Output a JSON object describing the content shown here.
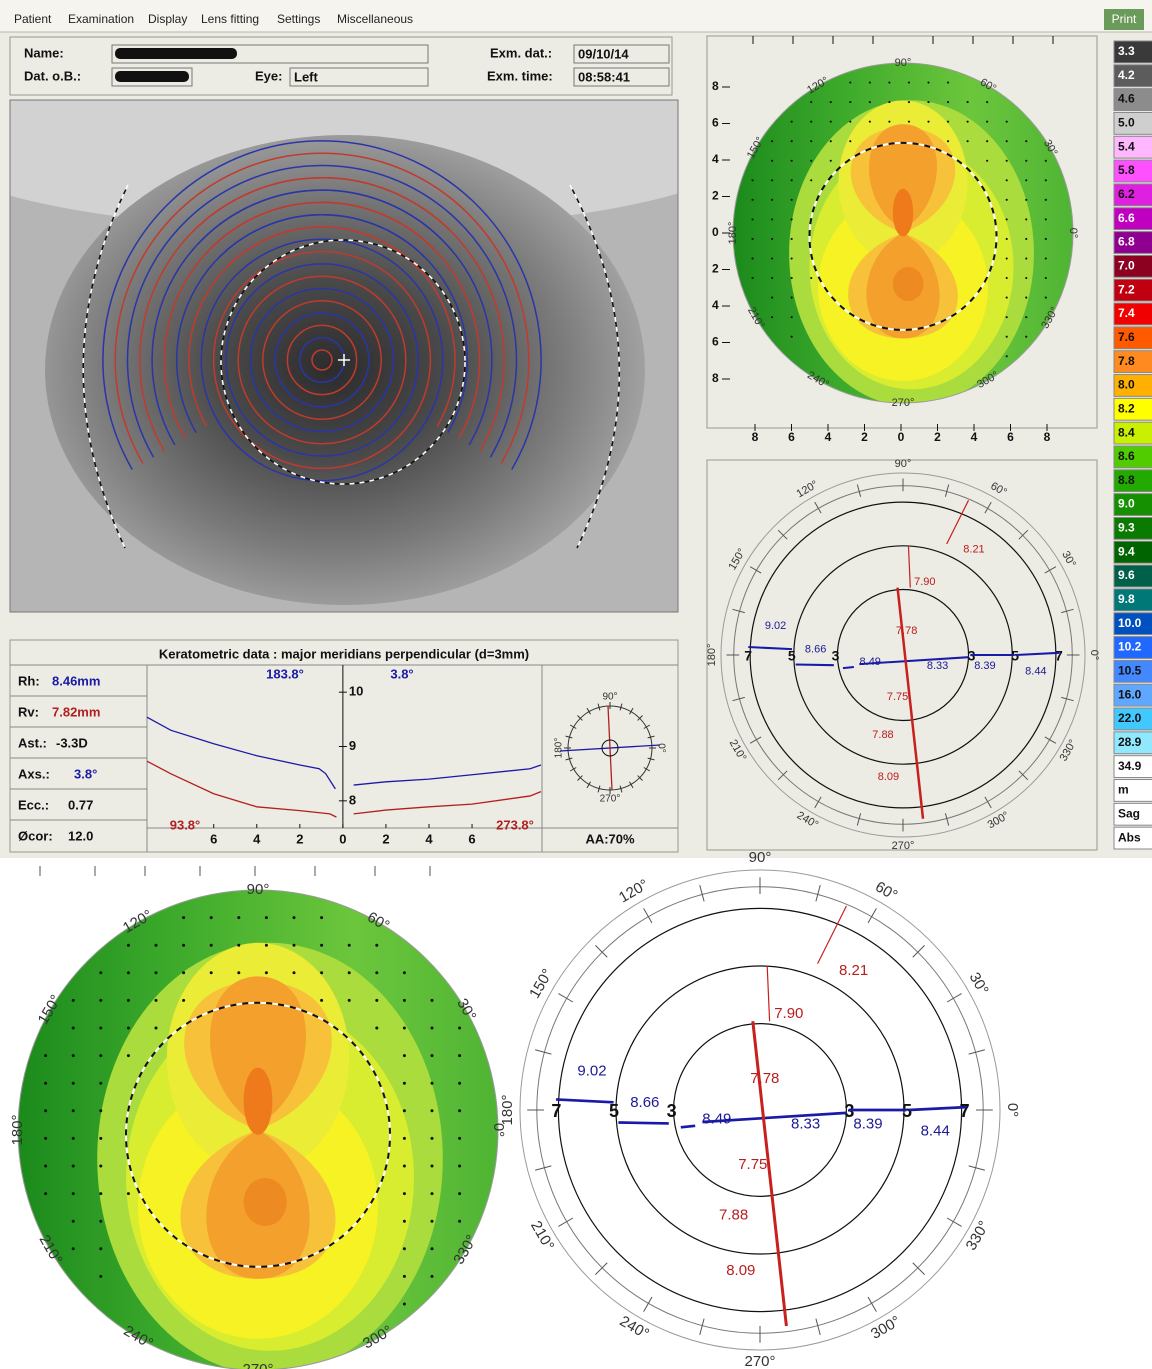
{
  "menu": [
    "Patient",
    "Examination",
    "Display",
    "Lens fitting",
    "Settings",
    "Miscellaneous"
  ],
  "print_button": "Print",
  "header": {
    "name_label": "Name:",
    "dob_label": "Dat. o.B.:",
    "eye_label": "Eye:",
    "eye": "Left",
    "exam_date_label": "Exm. dat.:",
    "exam_date": "09/10/14",
    "exam_time_label": "Exm. time:",
    "exam_time": "08:58:41"
  },
  "angle_labels": [
    "90°",
    "60°",
    "30°",
    "0°",
    "330°",
    "300°",
    "270°",
    "240°",
    "210°",
    "180°",
    "150°",
    "120°"
  ],
  "topography": {
    "axis_labels": [
      8,
      6,
      4,
      2,
      0,
      2,
      4,
      6,
      8
    ]
  },
  "scale": [
    {
      "label": "3.3",
      "color": "#3a3a3a"
    },
    {
      "label": "4.2",
      "color": "#5c5c5c"
    },
    {
      "label": "4.6",
      "color": "#8c8c8c"
    },
    {
      "label": "5.0",
      "color": "#cfcfcf"
    },
    {
      "label": "5.4",
      "color": "#ffb8ff"
    },
    {
      "label": "5.8",
      "color": "#ff50ff"
    },
    {
      "label": "6.2",
      "color": "#e020e0"
    },
    {
      "label": "6.6",
      "color": "#c000c0"
    },
    {
      "label": "6.8",
      "color": "#900090"
    },
    {
      "label": "7.0",
      "color": "#8c0020"
    },
    {
      "label": "7.2",
      "color": "#c00010"
    },
    {
      "label": "7.4",
      "color": "#f00000"
    },
    {
      "label": "7.6",
      "color": "#ff5a00"
    },
    {
      "label": "7.8",
      "color": "#ff8a20"
    },
    {
      "label": "8.0",
      "color": "#ffb000"
    },
    {
      "label": "8.2",
      "color": "#ffff00"
    },
    {
      "label": "8.4",
      "color": "#c8f000"
    },
    {
      "label": "8.6",
      "color": "#50cc00"
    },
    {
      "label": "8.8",
      "color": "#22aa00"
    },
    {
      "label": "9.0",
      "color": "#159000"
    },
    {
      "label": "9.3",
      "color": "#0a7a00"
    },
    {
      "label": "9.4",
      "color": "#006400"
    },
    {
      "label": "9.6",
      "color": "#00604a"
    },
    {
      "label": "9.8",
      "color": "#007878"
    },
    {
      "label": "10.0",
      "color": "#0050c0"
    },
    {
      "label": "10.2",
      "color": "#2068ff"
    },
    {
      "label": "10.5",
      "color": "#4488ff"
    },
    {
      "label": "16.0",
      "color": "#60a8ff"
    },
    {
      "label": "22.0",
      "color": "#40c8ff"
    },
    {
      "label": "28.9",
      "color": "#90e8ff"
    },
    {
      "label": "34.9",
      "color": "#ffffff"
    },
    {
      "label": "m",
      "color": "#ffffff"
    },
    {
      "label": "Sag",
      "color": "#ffffff"
    },
    {
      "label": "Abs",
      "color": "#ffffff"
    }
  ],
  "keratometry": {
    "title": "Keratometric data : major meridians perpendicular (d=3mm)",
    "rows": [
      {
        "label": "Rh:",
        "value": "8.46mm"
      },
      {
        "label": "Rv:",
        "value": "7.82mm"
      },
      {
        "label": "Ast.:",
        "value": "-3.3D"
      },
      {
        "label": "Axs.:",
        "value": "3.8°"
      },
      {
        "label": "Ecc.:",
        "value": "0.77"
      },
      {
        "label": "Øcor:",
        "value": "12.0"
      }
    ],
    "plot": {
      "xlim": [
        -9.1,
        9.25
      ],
      "ylim": [
        7.5,
        10.5
      ],
      "yticks": [
        10,
        9,
        8
      ],
      "xticks": [
        {
          "value": -6,
          "label": "6"
        },
        {
          "value": -4,
          "label": "4"
        },
        {
          "value": -2,
          "label": "2"
        },
        0,
        2,
        4,
        6
      ],
      "series": [
        {
          "label": "183.8°",
          "color": "#1a1aa8",
          "x": [
            -9.1,
            -8,
            -6,
            -4,
            -2,
            -1.1,
            -0.8,
            -0.35
          ],
          "values": [
            9.54,
            9.3,
            9.05,
            8.83,
            8.66,
            8.59,
            8.5,
            8.22
          ]
        },
        {
          "label": "3.8°",
          "color": "#1a1aa8",
          "x": [
            0.5,
            2,
            4,
            6,
            8.7,
            9.2
          ],
          "values": [
            8.29,
            8.35,
            8.4,
            8.48,
            8.59,
            8.66
          ]
        },
        {
          "label": "93.8°",
          "color": "#b02020",
          "x": [
            -9.1,
            -8,
            -6,
            -4,
            -2,
            -0.6,
            -0.3
          ],
          "values": [
            8.73,
            8.5,
            8.13,
            7.89,
            7.82,
            7.76,
            7.7
          ]
        },
        {
          "label": "273.8°",
          "color": "#b02020",
          "x": [
            0.5,
            2,
            4,
            6,
            8.7,
            9.2
          ],
          "values": [
            7.76,
            7.83,
            7.89,
            7.94,
            8.09,
            8.17
          ]
        }
      ]
    },
    "dial": [
      "90°",
      "180°",
      "0°",
      "270°"
    ],
    "aa": "AA:70%"
  },
  "meridians": {
    "ring_labels": [
      7,
      5,
      3,
      3,
      5,
      7
    ],
    "red_values": [
      "8.21",
      "7.90",
      "7.78",
      "7.75",
      "7.88",
      "8.09"
    ],
    "blue_values": [
      "9.02",
      "8.66",
      "8.49",
      "8.33",
      "8.39",
      "8.44"
    ]
  }
}
